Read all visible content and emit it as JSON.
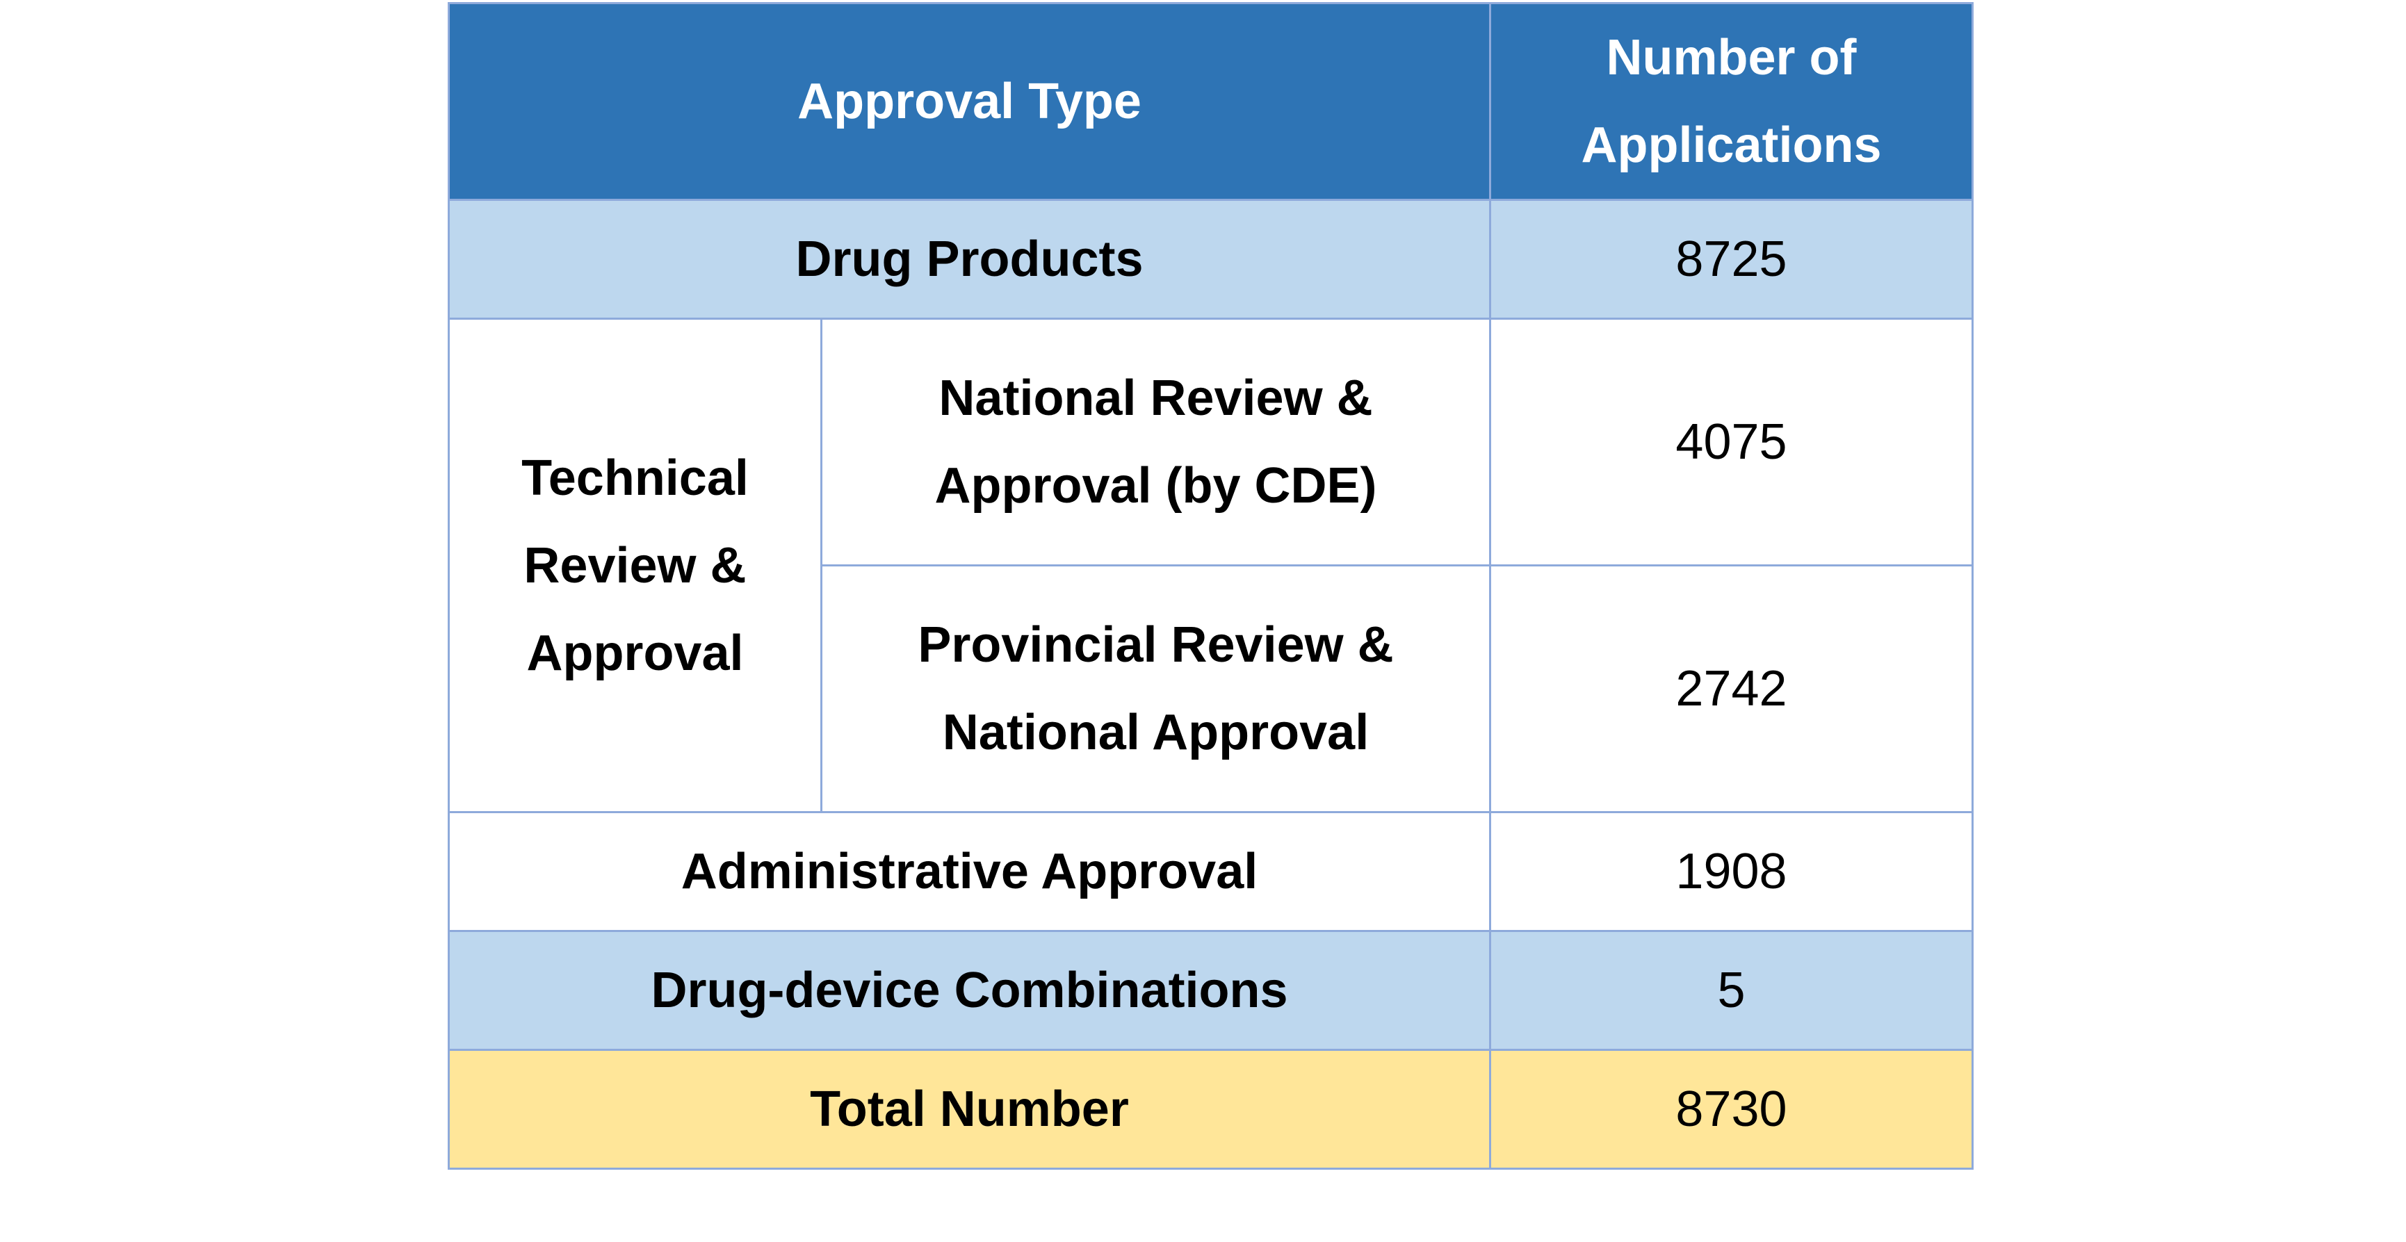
{
  "table": {
    "header": {
      "approval_type": "Approval Type",
      "number_of_applications": "Number of Applications"
    },
    "rows": {
      "drug_products": {
        "label": "Drug Products",
        "value": "8725"
      },
      "technical_group": "Technical Review & Approval",
      "national_review": {
        "label": "National Review & Approval (by CDE)",
        "value": "4075"
      },
      "provincial_review": {
        "label": "Provincial Review & National Approval",
        "value": "2742"
      },
      "administrative_approval": {
        "label": "Administrative Approval",
        "value": "1908"
      },
      "drug_device_combinations": {
        "label": "Drug-device Combinations",
        "value": "5"
      },
      "total_number": {
        "label": "Total Number",
        "value": "8730"
      }
    },
    "colors": {
      "header_bg": "#2e74b5",
      "row_blue_bg": "#bdd7ee",
      "row_total_bg": "#ffe699",
      "border": "#8eaadb"
    }
  }
}
